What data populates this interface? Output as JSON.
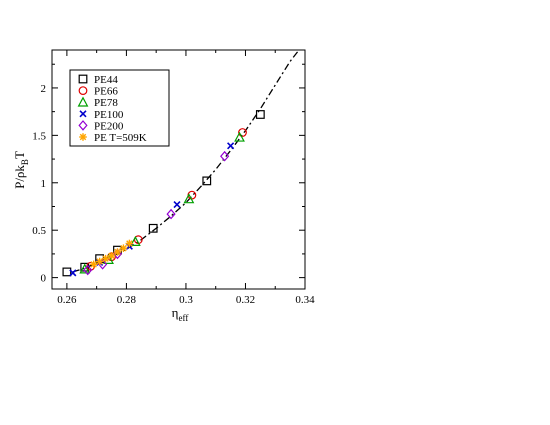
{
  "chart_data": {
    "type": "scatter",
    "title": "",
    "xlabel": {
      "main": "η",
      "sub": "eff"
    },
    "ylabel": {
      "prefix": "P/ρk",
      "sub": "B",
      "suffix": "T"
    },
    "xlim": [
      0.255,
      0.34
    ],
    "ylim": [
      -0.12,
      2.4
    ],
    "xticks": [
      0.26,
      0.28,
      0.3,
      0.32,
      0.34
    ],
    "xtick_labels": [
      "0.26",
      "0.28",
      "0.3",
      "0.32",
      "0.34"
    ],
    "yticks": [
      0,
      0.5,
      1,
      1.5,
      2
    ],
    "ytick_labels": [
      "0",
      "0.5",
      "1",
      "1.5",
      "2"
    ],
    "grid": false,
    "legend_position": "top-left",
    "fit_curve": {
      "style": "dash-dot",
      "color": "#000000",
      "x": [
        0.262,
        0.265,
        0.27,
        0.275,
        0.28,
        0.285,
        0.29,
        0.295,
        0.3,
        0.305,
        0.31,
        0.315,
        0.32,
        0.325,
        0.33,
        0.335,
        0.338
      ],
      "y": [
        0.06,
        0.09,
        0.15,
        0.22,
        0.3,
        0.4,
        0.52,
        0.65,
        0.79,
        0.96,
        1.14,
        1.34,
        1.55,
        1.78,
        2.03,
        2.28,
        2.42
      ]
    },
    "series": [
      {
        "name": "PE44",
        "marker": "square",
        "color": "#000000",
        "x": [
          0.26,
          0.266,
          0.271,
          0.277,
          0.289,
          0.307,
          0.325
        ],
        "y": [
          0.06,
          0.11,
          0.2,
          0.29,
          0.52,
          1.02,
          1.72
        ]
      },
      {
        "name": "PE66",
        "marker": "circle",
        "color": "#e00000",
        "x": [
          0.268,
          0.275,
          0.284,
          0.302,
          0.319
        ],
        "y": [
          0.12,
          0.22,
          0.4,
          0.87,
          1.53
        ]
      },
      {
        "name": "PE78",
        "marker": "triangle",
        "color": "#00a000",
        "x": [
          0.266,
          0.274,
          0.283,
          0.301,
          0.318
        ],
        "y": [
          0.09,
          0.19,
          0.38,
          0.83,
          1.48
        ]
      },
      {
        "name": "PE100",
        "marker": "x",
        "color": "#0000cc",
        "x": [
          0.262,
          0.271,
          0.281,
          0.297,
          0.315
        ],
        "y": [
          0.05,
          0.16,
          0.33,
          0.77,
          1.39
        ]
      },
      {
        "name": "PE200",
        "marker": "diamond",
        "color": "#9400d3",
        "x": [
          0.267,
          0.272,
          0.277,
          0.295,
          0.313
        ],
        "y": [
          0.08,
          0.14,
          0.25,
          0.67,
          1.28
        ]
      },
      {
        "name": "PE T=509K",
        "marker": "star",
        "color": "#ffa500",
        "x": [
          0.269,
          0.271,
          0.273,
          0.275,
          0.277,
          0.279,
          0.281
        ],
        "y": [
          0.14,
          0.17,
          0.2,
          0.23,
          0.27,
          0.31,
          0.36
        ]
      }
    ]
  }
}
